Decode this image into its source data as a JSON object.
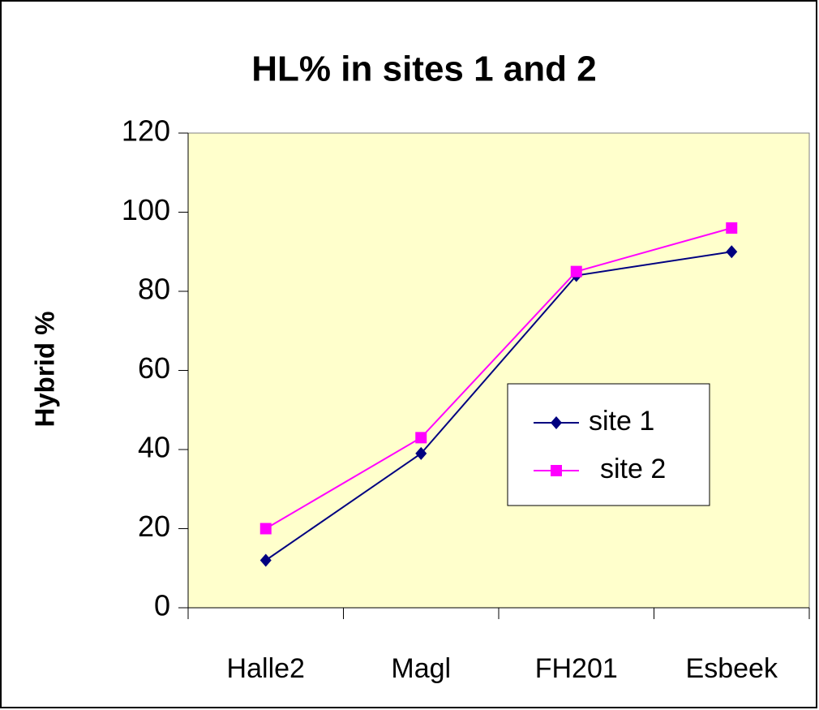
{
  "chart_data": {
    "type": "line",
    "title": "HL% in sites 1 and 2",
    "y_label": "Hybrid %",
    "categories": [
      "Halle2",
      "Magl",
      "FH201",
      "Esbeek"
    ],
    "series": [
      {
        "name": "site 1",
        "color": "#000080",
        "marker": "diamond",
        "values": [
          12,
          39,
          84,
          90
        ]
      },
      {
        "name": "site 2",
        "color": "#ff00ff",
        "marker": "square",
        "values": [
          20,
          43,
          85,
          96
        ]
      }
    ],
    "ylim": [
      0,
      120
    ],
    "yticks": [
      0,
      20,
      40,
      60,
      80,
      100,
      120
    ],
    "grid": false,
    "legend": "right",
    "plot_background": "#ffffcc"
  }
}
